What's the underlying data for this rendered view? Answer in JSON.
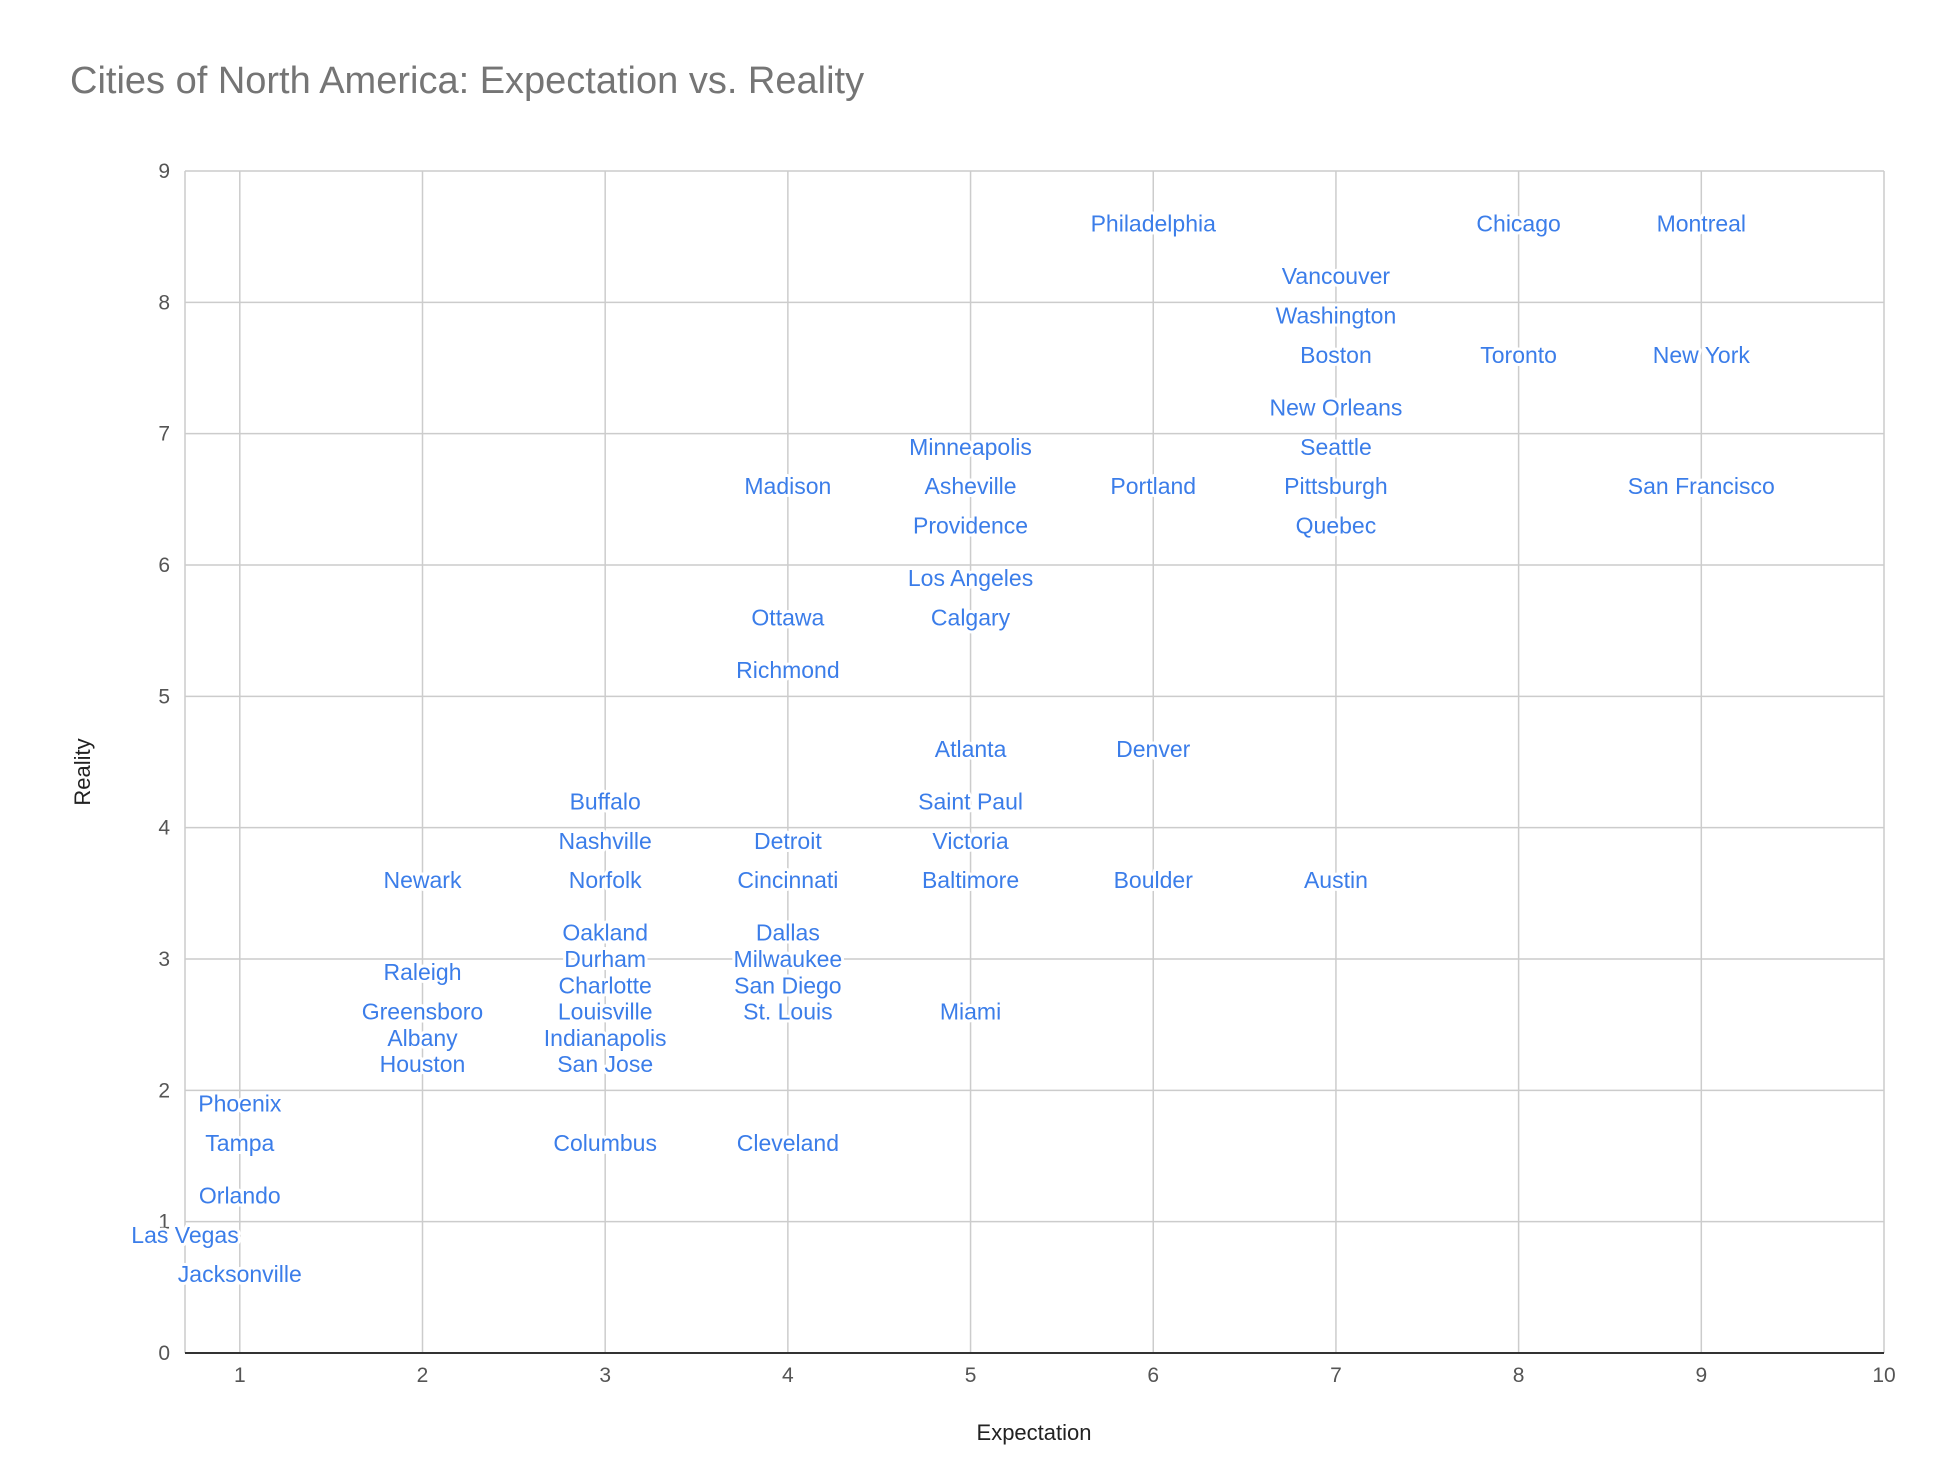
{
  "chart_data": {
    "type": "scatter",
    "title": "Cities of North America: Expectation vs. Reality",
    "xlabel": "Expectation",
    "ylabel": "Reality",
    "xlim": [
      0.7,
      10
    ],
    "ylim": [
      0,
      9
    ],
    "xticks": [
      1,
      2,
      3,
      4,
      5,
      6,
      7,
      8,
      9,
      10
    ],
    "yticks": [
      0,
      1,
      2,
      3,
      4,
      5,
      6,
      7,
      8,
      9
    ],
    "grid": true,
    "label_color": "#3b7de9",
    "points": [
      {
        "label": "Philadelphia",
        "x": 6,
        "y": 8.6
      },
      {
        "label": "Chicago",
        "x": 8,
        "y": 8.6
      },
      {
        "label": "Montreal",
        "x": 9,
        "y": 8.6
      },
      {
        "label": "Vancouver",
        "x": 7,
        "y": 8.2
      },
      {
        "label": "Washington",
        "x": 7,
        "y": 7.9
      },
      {
        "label": "Boston",
        "x": 7,
        "y": 7.6
      },
      {
        "label": "Toronto",
        "x": 8,
        "y": 7.6
      },
      {
        "label": "New York",
        "x": 9,
        "y": 7.6
      },
      {
        "label": "New Orleans",
        "x": 7,
        "y": 7.2
      },
      {
        "label": "Minneapolis",
        "x": 5,
        "y": 6.9
      },
      {
        "label": "Seattle",
        "x": 7,
        "y": 6.9
      },
      {
        "label": "Madison",
        "x": 4,
        "y": 6.6
      },
      {
        "label": "Asheville",
        "x": 5,
        "y": 6.6
      },
      {
        "label": "Portland",
        "x": 6,
        "y": 6.6
      },
      {
        "label": "Pittsburgh",
        "x": 7,
        "y": 6.6
      },
      {
        "label": "San Francisco",
        "x": 9,
        "y": 6.6
      },
      {
        "label": "Providence",
        "x": 5,
        "y": 6.3
      },
      {
        "label": "Quebec",
        "x": 7,
        "y": 6.3
      },
      {
        "label": "Los Angeles",
        "x": 5,
        "y": 5.9
      },
      {
        "label": "Ottawa",
        "x": 4,
        "y": 5.6
      },
      {
        "label": "Calgary",
        "x": 5,
        "y": 5.6
      },
      {
        "label": "Richmond",
        "x": 4,
        "y": 5.2
      },
      {
        "label": "Atlanta",
        "x": 5,
        "y": 4.6
      },
      {
        "label": "Denver",
        "x": 6,
        "y": 4.6
      },
      {
        "label": "Buffalo",
        "x": 3,
        "y": 4.2
      },
      {
        "label": "Saint Paul",
        "x": 5,
        "y": 4.2
      },
      {
        "label": "Nashville",
        "x": 3,
        "y": 3.9
      },
      {
        "label": "Detroit",
        "x": 4,
        "y": 3.9
      },
      {
        "label": "Victoria",
        "x": 5,
        "y": 3.9
      },
      {
        "label": "Newark",
        "x": 2,
        "y": 3.6
      },
      {
        "label": "Norfolk",
        "x": 3,
        "y": 3.6
      },
      {
        "label": "Cincinnati",
        "x": 4,
        "y": 3.6
      },
      {
        "label": "Baltimore",
        "x": 5,
        "y": 3.6
      },
      {
        "label": "Boulder",
        "x": 6,
        "y": 3.6
      },
      {
        "label": "Austin",
        "x": 7,
        "y": 3.6
      },
      {
        "label": "Oakland",
        "x": 3,
        "y": 3.2
      },
      {
        "label": "Dallas",
        "x": 4,
        "y": 3.2
      },
      {
        "label": "Raleigh",
        "x": 2,
        "y": 2.9
      },
      {
        "label": "Durham",
        "x": 3,
        "y": 3.0
      },
      {
        "label": "Milwaukee",
        "x": 4,
        "y": 3.0
      },
      {
        "label": "Charlotte",
        "x": 3,
        "y": 2.8
      },
      {
        "label": "San Diego",
        "x": 4,
        "y": 2.8
      },
      {
        "label": "Greensboro",
        "x": 2,
        "y": 2.6
      },
      {
        "label": "Louisville",
        "x": 3,
        "y": 2.6
      },
      {
        "label": "St. Louis",
        "x": 4,
        "y": 2.6
      },
      {
        "label": "Miami",
        "x": 5,
        "y": 2.6
      },
      {
        "label": "Albany",
        "x": 2,
        "y": 2.4
      },
      {
        "label": "Indianapolis",
        "x": 3,
        "y": 2.4
      },
      {
        "label": "Houston",
        "x": 2,
        "y": 2.2
      },
      {
        "label": "San Jose",
        "x": 3,
        "y": 2.2
      },
      {
        "label": "Phoenix",
        "x": 1,
        "y": 1.9
      },
      {
        "label": "Tampa",
        "x": 1,
        "y": 1.6
      },
      {
        "label": "Columbus",
        "x": 3,
        "y": 1.6
      },
      {
        "label": "Cleveland",
        "x": 4,
        "y": 1.6
      },
      {
        "label": "Orlando",
        "x": 1,
        "y": 1.2
      },
      {
        "label": "Las Vegas",
        "x": 0.7,
        "y": 0.9
      },
      {
        "label": "Jacksonville",
        "x": 1,
        "y": 0.6
      }
    ]
  }
}
